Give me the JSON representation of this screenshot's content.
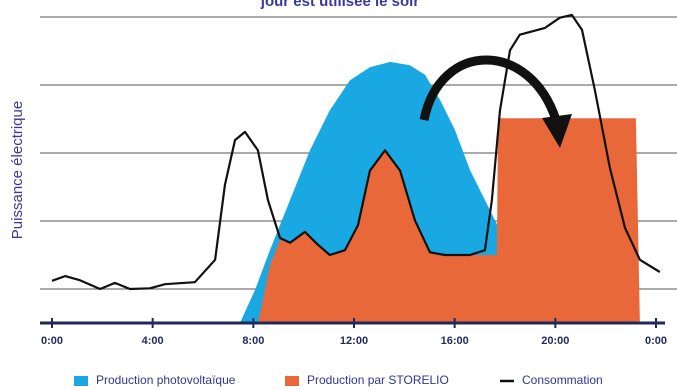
{
  "chart_data": {
    "type": "area",
    "title": "jour est utilisée le soir",
    "y_label": "Puissance électrique",
    "xlim": [
      0,
      24
    ],
    "ylim": [
      0,
      4.75
    ],
    "xticks": [
      {
        "value": 0,
        "label": "0:00"
      },
      {
        "value": 4,
        "label": "4:00"
      },
      {
        "value": 8,
        "label": "8:00"
      },
      {
        "value": 12,
        "label": "12:00"
      },
      {
        "value": 16,
        "label": "16:00"
      },
      {
        "value": 20,
        "label": "20:00"
      },
      {
        "value": 24,
        "label": "0:00"
      }
    ],
    "yticks": [
      0.5,
      1.5,
      2.5,
      3.5,
      4.5
    ],
    "grid": true,
    "series": [
      {
        "name": "Production photovoltaïque",
        "color": "#1aa8e2",
        "style": "area",
        "x": [
          7.47,
          8.07,
          8.66,
          9.46,
          10.25,
          11.04,
          11.84,
          12.63,
          13.43,
          14.22,
          14.82,
          15.42,
          16.01,
          16.61,
          17.4,
          18.2,
          18.99,
          19.79,
          19.98
        ],
        "values": [
          0,
          0.49,
          1.07,
          1.81,
          2.54,
          3.13,
          3.57,
          3.76,
          3.84,
          3.79,
          3.65,
          3.28,
          2.84,
          2.25,
          1.66,
          1.07,
          0.41,
          0.07,
          0
        ]
      },
      {
        "name": "Production par STORELIO",
        "color": "#e8683a",
        "style": "area",
        "x": [
          8.18,
          8.34,
          8.66,
          9.06,
          9.46,
          10.05,
          10.57,
          11.04,
          11.64,
          12.16,
          12.63,
          13.23,
          13.83,
          14.42,
          15.02,
          15.61,
          16.61,
          17.4,
          17.68,
          17.72,
          23.2,
          23.36
        ],
        "values": [
          0,
          0.26,
          0.85,
          1.22,
          1.18,
          1.34,
          1.15,
          1.0,
          1.07,
          1.44,
          2.24,
          2.54,
          2.24,
          1.51,
          1.04,
          1.0,
          1.0,
          1.0,
          1.0,
          3.01,
          3.01,
          0
        ]
      },
      {
        "name": "Consommation",
        "color": "#111111",
        "style": "line",
        "x": [
          0,
          0.52,
          1.11,
          1.91,
          2.5,
          3.1,
          3.89,
          4.49,
          5.68,
          6.48,
          6.87,
          7.27,
          7.67,
          8.18,
          8.58,
          9.06,
          9.46,
          10.05,
          10.57,
          11.04,
          11.64,
          12.16,
          12.63,
          13.23,
          13.83,
          14.42,
          15.02,
          15.61,
          16.61,
          17.2,
          17.48,
          17.8,
          18.2,
          18.59,
          19.59,
          20.18,
          20.66,
          21.06,
          21.57,
          22.17,
          22.77,
          23.36,
          24.15
        ],
        "values": [
          0.62,
          0.69,
          0.63,
          0.5,
          0.59,
          0.5,
          0.51,
          0.57,
          0.6,
          0.93,
          2.03,
          2.69,
          2.81,
          2.54,
          1.81,
          1.25,
          1.18,
          1.34,
          1.15,
          1.0,
          1.07,
          1.44,
          2.24,
          2.54,
          2.24,
          1.51,
          1.04,
          1.0,
          1.0,
          1.07,
          1.81,
          3.13,
          4.01,
          4.24,
          4.34,
          4.49,
          4.53,
          4.31,
          3.43,
          2.28,
          1.4,
          0.93,
          0.75
        ]
      }
    ]
  }
}
